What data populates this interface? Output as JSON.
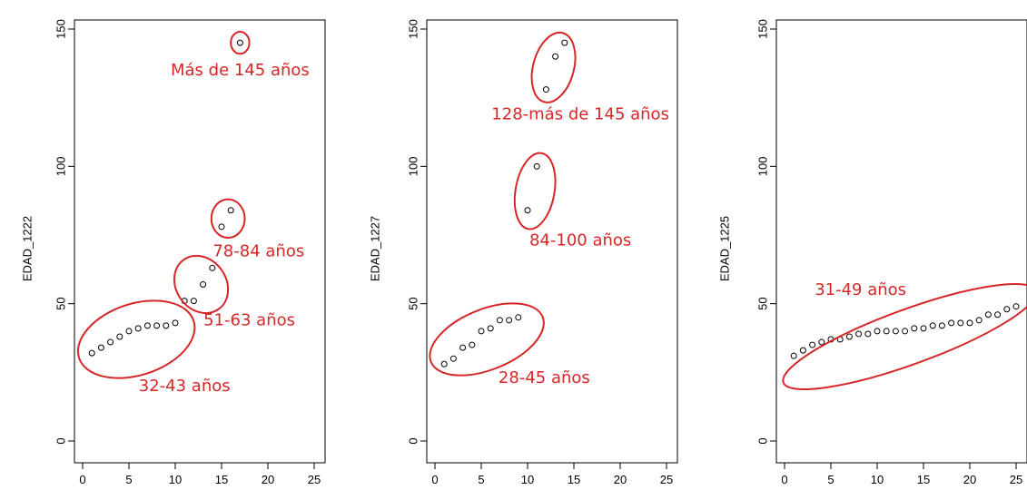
{
  "colors": {
    "annotation": "#d62728",
    "points": "#000000",
    "axis": "#000000"
  },
  "chart_data": [
    {
      "type": "scatter",
      "ylabel": "EDAD_1222",
      "xlim": [
        0,
        25
      ],
      "ylim": [
        0,
        150
      ],
      "xticks": [
        "0",
        "5",
        "10",
        "15",
        "20",
        "25"
      ],
      "yticks": [
        "0",
        "50",
        "100",
        "150"
      ],
      "series": [
        {
          "x": [
            1,
            2,
            3,
            4,
            5,
            6,
            7,
            8,
            9,
            10,
            11,
            12,
            13,
            14,
            15,
            16,
            17
          ],
          "y": [
            32,
            34,
            36,
            38,
            40,
            41,
            42,
            42,
            42,
            43,
            51,
            51,
            57,
            63,
            78,
            84,
            145
          ]
        }
      ],
      "annotations": [
        {
          "label": "Más de 145 años",
          "cx": 17,
          "cy": 145,
          "rx": 1.0,
          "ry": 4,
          "angle": 0,
          "tx": 17,
          "ty": 135
        },
        {
          "label": "78-84 años",
          "cx": 15.7,
          "cy": 81,
          "rx": 1.8,
          "ry": 7,
          "angle": 0,
          "tx": 19,
          "ty": 69
        },
        {
          "label": "51-63 años",
          "cx": 12.8,
          "cy": 57,
          "rx": 2.7,
          "ry": 11,
          "angle": -35,
          "tx": 18,
          "ty": 44
        },
        {
          "label": "32-43 años",
          "cx": 5.8,
          "cy": 37,
          "rx": 6.5,
          "ry": 13,
          "angle": -18,
          "tx": 11,
          "ty": 20
        }
      ]
    },
    {
      "type": "scatter",
      "ylabel": "EDAD_1227",
      "xlim": [
        0,
        25
      ],
      "ylim": [
        0,
        150
      ],
      "xticks": [
        "0",
        "5",
        "10",
        "15",
        "20",
        "25"
      ],
      "yticks": [
        "0",
        "50",
        "100",
        "150"
      ],
      "series": [
        {
          "x": [
            1,
            2,
            3,
            4,
            5,
            6,
            7,
            8,
            9,
            10,
            11,
            12,
            13,
            14
          ],
          "y": [
            28,
            30,
            34,
            35,
            40,
            41,
            44,
            44,
            45,
            84,
            100,
            128,
            140,
            145
          ]
        }
      ],
      "annotations": [
        {
          "label": "128-más de 145 años",
          "cx": 12.8,
          "cy": 136,
          "rx": 2.2,
          "ry": 13,
          "angle": 15,
          "tx": 15.7,
          "ty": 119
        },
        {
          "label": "84-100 años",
          "cx": 10.8,
          "cy": 91,
          "rx": 2.1,
          "ry": 14,
          "angle": 10,
          "tx": 15.7,
          "ty": 73
        },
        {
          "label": "28-45 años",
          "cx": 5.6,
          "cy": 37,
          "rx": 6.5,
          "ry": 11,
          "angle": -22,
          "tx": 11.8,
          "ty": 23
        }
      ]
    },
    {
      "type": "scatter",
      "ylabel": "EDAD_1225",
      "xlim": [
        0,
        25
      ],
      "ylim": [
        0,
        150
      ],
      "xticks": [
        "0",
        "5",
        "10",
        "15",
        "20",
        "25"
      ],
      "yticks": [
        "0",
        "50",
        "100",
        "150"
      ],
      "series": [
        {
          "x": [
            1,
            2,
            3,
            4,
            5,
            6,
            7,
            8,
            9,
            10,
            11,
            12,
            13,
            14,
            15,
            16,
            17,
            18,
            19,
            20,
            21,
            22,
            23,
            24,
            25
          ],
          "y": [
            31,
            33,
            35,
            36,
            37,
            37,
            38,
            39,
            39,
            40,
            40,
            40,
            40,
            41,
            41,
            42,
            42,
            43,
            43,
            43,
            44,
            46,
            46,
            48,
            49
          ]
        }
      ],
      "annotations": [
        {
          "label": "31-49 años",
          "cx": 13.5,
          "cy": 38,
          "rx": 14.5,
          "ry": 10,
          "angle": -20,
          "tx": 8.2,
          "ty": 55
        }
      ]
    }
  ]
}
